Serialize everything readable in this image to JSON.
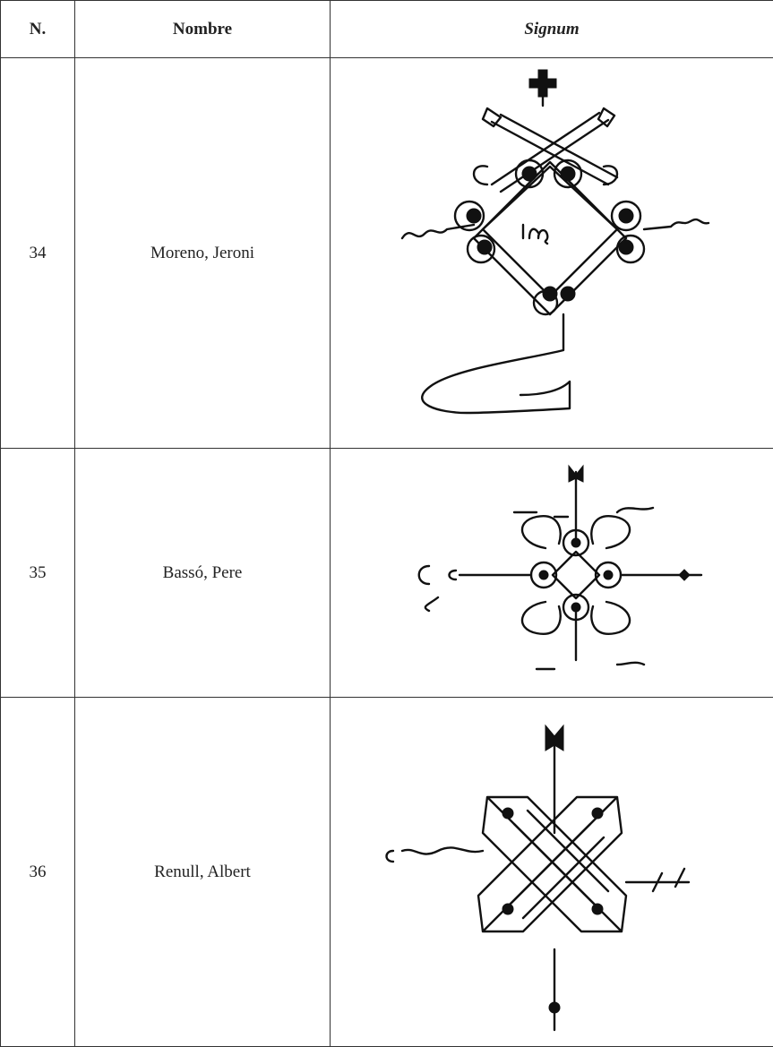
{
  "table": {
    "header": [
      "N.",
      "Nombre",
      "Signum"
    ],
    "rows": [
      [
        "34",
        "Moreno, Jeroni"
      ],
      [
        "35",
        "Bassó, Pere"
      ],
      [
        "36",
        "Renull, Albert"
      ]
    ]
  }
}
